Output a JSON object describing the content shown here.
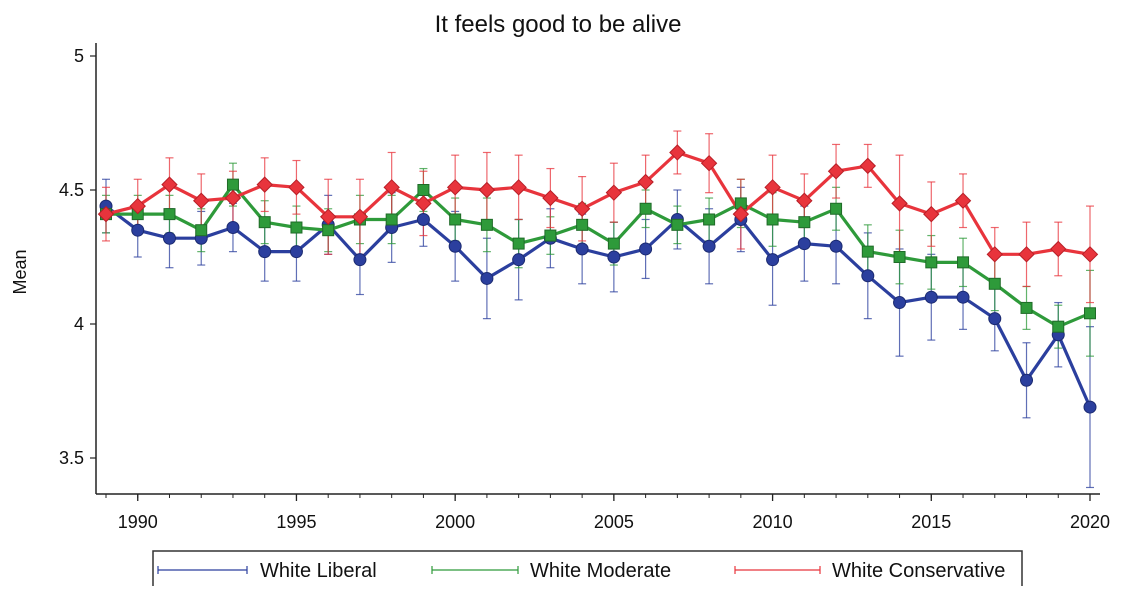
{
  "chart_data": {
    "type": "line",
    "title": "It feels good to be alive",
    "xlabel": "",
    "ylabel": "Mean",
    "xlim": [
      1989,
      2020
    ],
    "ylim": [
      3.5,
      5
    ],
    "x_ticks": [
      1990,
      1995,
      2000,
      2005,
      2010,
      2015,
      2020
    ],
    "y_ticks": [
      3.5,
      4,
      4.5,
      5
    ],
    "x_tick_labels": [
      "1990",
      "1995",
      "2000",
      "2005",
      "2010",
      "2015",
      "2020"
    ],
    "y_tick_labels": [
      "3.5",
      "4",
      "4.5",
      "5"
    ],
    "x": [
      1989,
      1990,
      1991,
      1992,
      1993,
      1994,
      1995,
      1996,
      1997,
      1998,
      1999,
      2000,
      2001,
      2002,
      2003,
      2004,
      2005,
      2006,
      2007,
      2008,
      2009,
      2010,
      2011,
      2012,
      2013,
      2014,
      2015,
      2016,
      2017,
      2018,
      2019,
      2020
    ],
    "grid": false,
    "legend_position": "bottom",
    "error_bars": true,
    "series": [
      {
        "name": "White Liberal",
        "color": "#2b3f9e",
        "marker": "circle",
        "values": [
          4.44,
          4.35,
          4.32,
          4.32,
          4.36,
          4.27,
          4.27,
          4.37,
          4.24,
          4.36,
          4.39,
          4.29,
          4.17,
          4.24,
          4.32,
          4.28,
          4.25,
          4.28,
          4.39,
          4.29,
          4.39,
          4.24,
          4.3,
          4.29,
          4.18,
          4.08,
          4.1,
          4.1,
          4.02,
          3.79,
          3.96,
          3.69
        ],
        "err": [
          0.1,
          0.1,
          0.11,
          0.1,
          0.09,
          0.11,
          0.11,
          0.11,
          0.13,
          0.13,
          0.1,
          0.13,
          0.15,
          0.15,
          0.11,
          0.13,
          0.13,
          0.11,
          0.11,
          0.14,
          0.12,
          0.17,
          0.14,
          0.14,
          0.16,
          0.2,
          0.16,
          0.12,
          0.12,
          0.14,
          0.12,
          0.3
        ]
      },
      {
        "name": "White Moderate",
        "color": "#2e9a3a",
        "marker": "square",
        "values": [
          4.41,
          4.41,
          4.41,
          4.35,
          4.52,
          4.38,
          4.36,
          4.35,
          4.39,
          4.39,
          4.5,
          4.39,
          4.37,
          4.3,
          4.33,
          4.37,
          4.3,
          4.43,
          4.37,
          4.39,
          4.45,
          4.39,
          4.38,
          4.43,
          4.27,
          4.25,
          4.23,
          4.23,
          4.15,
          4.06,
          3.99,
          4.04
        ],
        "err": [
          0.07,
          0.07,
          0.07,
          0.08,
          0.08,
          0.08,
          0.08,
          0.08,
          0.09,
          0.09,
          0.08,
          0.08,
          0.1,
          0.09,
          0.07,
          0.08,
          0.08,
          0.07,
          0.07,
          0.08,
          0.09,
          0.1,
          0.09,
          0.08,
          0.1,
          0.1,
          0.1,
          0.09,
          0.1,
          0.08,
          0.08,
          0.16
        ]
      },
      {
        "name": "White Conservative",
        "color": "#e8343c",
        "marker": "diamond",
        "values": [
          4.41,
          4.44,
          4.52,
          4.46,
          4.47,
          4.52,
          4.51,
          4.4,
          4.4,
          4.51,
          4.45,
          4.51,
          4.5,
          4.51,
          4.47,
          4.43,
          4.49,
          4.53,
          4.64,
          4.6,
          4.41,
          4.51,
          4.46,
          4.57,
          4.59,
          4.45,
          4.41,
          4.46,
          4.26,
          4.26,
          4.28,
          4.26
        ],
        "err": [
          0.1,
          0.1,
          0.1,
          0.1,
          0.1,
          0.1,
          0.1,
          0.14,
          0.14,
          0.13,
          0.12,
          0.12,
          0.14,
          0.12,
          0.11,
          0.12,
          0.11,
          0.1,
          0.08,
          0.11,
          0.13,
          0.12,
          0.1,
          0.1,
          0.08,
          0.18,
          0.12,
          0.1,
          0.1,
          0.12,
          0.1,
          0.18
        ]
      }
    ]
  }
}
